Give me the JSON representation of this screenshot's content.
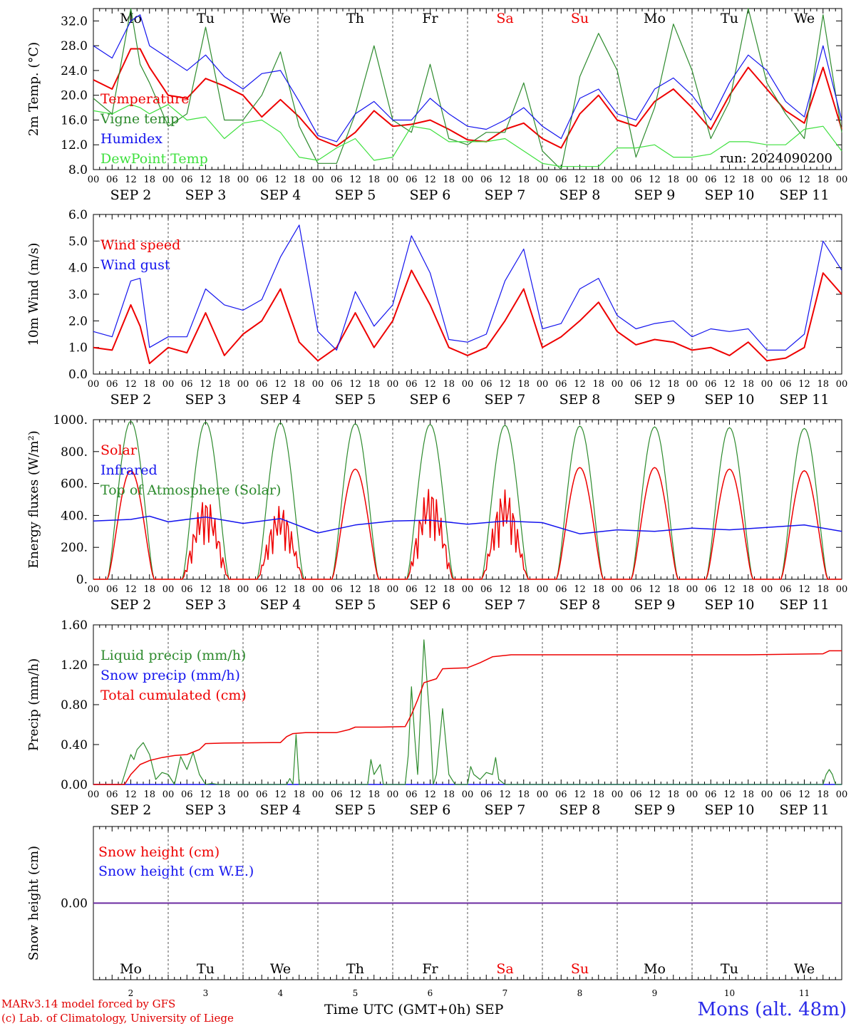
{
  "colors": {
    "red": "#ee0000",
    "green": "#2e8b2e",
    "blue": "#1414ee",
    "lightgreen": "#3ee03e",
    "snow_line": "#6b2ba0",
    "axis": "#000000",
    "grid": "#555555"
  },
  "days": [
    {
      "date": "SEP  2",
      "wd": "Mo",
      "num": "2",
      "weekend": false
    },
    {
      "date": "SEP  3",
      "wd": "Tu",
      "num": "3",
      "weekend": false
    },
    {
      "date": "SEP  4",
      "wd": "We",
      "num": "4",
      "weekend": false
    },
    {
      "date": "SEP  5",
      "wd": "Th",
      "num": "5",
      "weekend": false
    },
    {
      "date": "SEP  6",
      "wd": "Fr",
      "num": "6",
      "weekend": false
    },
    {
      "date": "SEP  7",
      "wd": "Sa",
      "num": "7",
      "weekend": true
    },
    {
      "date": "SEP  8",
      "wd": "Su",
      "num": "8",
      "weekend": true
    },
    {
      "date": "SEP  9",
      "wd": "Mo",
      "num": "9",
      "weekend": false
    },
    {
      "date": "SEP 10",
      "wd": "Tu",
      "num": "10",
      "weekend": false
    },
    {
      "date": "SEP 11",
      "wd": "We",
      "num": "11",
      "weekend": false
    }
  ],
  "hour_ticks": [
    "00",
    "06",
    "12",
    "18"
  ],
  "footer": {
    "model": "MARv3.14 model forced by GFS",
    "lab": "(c) Lab. of Climatology, University of Liege",
    "xaxis": "Time UTC (GMT+0h) SEP",
    "station": "Mons (alt. 48m)"
  },
  "chart_data": [
    {
      "type": "line",
      "ylabel": "2m Temp. (°C)",
      "ylim": [
        8,
        34
      ],
      "yticks": [
        "8.0",
        "12.0",
        "16.0",
        "20.0",
        "24.0",
        "28.0",
        "32.0"
      ],
      "annotation": "run: 2024090200",
      "legend_placement": "left",
      "x_hours": [
        0,
        6,
        12,
        15,
        18,
        24,
        30,
        36,
        42,
        48,
        54,
        60,
        66,
        72,
        78,
        84,
        90,
        96,
        102,
        108,
        114,
        120,
        126,
        132,
        138,
        144,
        150,
        156,
        162,
        168,
        174,
        180,
        186,
        192,
        198,
        204,
        210,
        216,
        222,
        228,
        234,
        240
      ],
      "series": [
        {
          "name": "Temperature",
          "color": "red",
          "values": [
            22.5,
            21,
            27.5,
            27.5,
            24.5,
            20,
            19.5,
            22.7,
            21.5,
            20,
            16.5,
            19.3,
            16.5,
            13,
            11.8,
            14,
            17.5,
            15,
            15.3,
            16,
            14.5,
            12.8,
            12.5,
            14.5,
            15.5,
            13,
            11.5,
            17,
            20,
            16,
            15,
            19,
            21,
            18,
            14.5,
            20,
            24.5,
            21,
            17.5,
            15.5,
            24.5,
            14.5
          ]
        },
        {
          "name": "Vigne temp",
          "color": "green",
          "values": [
            19.5,
            17,
            35,
            25,
            22,
            15,
            17,
            31,
            16,
            16,
            20,
            27,
            15,
            9,
            9,
            17,
            28,
            16,
            14,
            25,
            13,
            12,
            14,
            14,
            22,
            11,
            8,
            23,
            30,
            24,
            10,
            18,
            31.5,
            24,
            13,
            19,
            34,
            22,
            17,
            13,
            33,
            14
          ]
        },
        {
          "name": "Humidex",
          "color": "blue",
          "values": [
            28,
            26,
            32,
            33,
            28,
            26,
            24,
            26.5,
            23,
            21,
            23.5,
            24,
            19,
            13.5,
            12.5,
            17,
            19,
            16,
            16,
            19.5,
            17,
            15,
            14.5,
            16,
            18,
            15,
            13,
            19.5,
            21,
            17,
            16,
            21,
            22.8,
            20,
            16,
            22,
            26.5,
            24,
            19,
            16.5,
            28,
            16
          ]
        },
        {
          "name": "DewPoint Temp",
          "color": "lightgreen",
          "values": [
            17.5,
            17,
            18.5,
            18,
            17,
            18.5,
            16,
            16.5,
            13,
            15.5,
            16,
            14,
            10,
            9.5,
            11.5,
            13,
            9.5,
            10,
            15,
            14.5,
            12.5,
            12.5,
            12.5,
            13,
            11,
            9,
            8.5,
            8.5,
            8.5,
            11.5,
            11.5,
            12,
            10,
            10,
            10.5,
            12.5,
            12.5,
            12,
            12,
            14.5,
            15,
            11
          ]
        }
      ]
    },
    {
      "type": "line",
      "ylabel": "10m Wind (m/s)",
      "ylim": [
        0,
        6
      ],
      "yticks": [
        "0.0",
        "1.0",
        "2.0",
        "3.0",
        "4.0",
        "5.0",
        "6.0"
      ],
      "reference_line": 5.0,
      "legend_placement": "left",
      "x_hours": [
        0,
        6,
        12,
        15,
        18,
        24,
        30,
        36,
        42,
        48,
        54,
        60,
        66,
        72,
        78,
        84,
        90,
        96,
        102,
        108,
        114,
        120,
        126,
        132,
        138,
        144,
        150,
        156,
        162,
        168,
        174,
        180,
        186,
        192,
        198,
        204,
        210,
        216,
        222,
        228,
        234,
        240
      ],
      "series": [
        {
          "name": "Wind speed",
          "color": "red",
          "values": [
            1.0,
            0.9,
            2.6,
            1.8,
            0.4,
            1.0,
            0.8,
            2.3,
            0.7,
            1.5,
            2.0,
            3.2,
            1.2,
            0.5,
            1.0,
            2.3,
            1.0,
            2.0,
            3.9,
            2.6,
            1.0,
            0.7,
            1.0,
            2.0,
            3.2,
            1.0,
            1.4,
            2.0,
            2.7,
            1.6,
            1.1,
            1.3,
            1.2,
            0.9,
            1.0,
            0.7,
            1.2,
            0.5,
            0.6,
            1.0,
            3.8,
            3.0
          ]
        },
        {
          "name": "Wind gust",
          "color": "blue",
          "values": [
            1.6,
            1.4,
            3.5,
            3.6,
            1.0,
            1.4,
            1.4,
            3.2,
            2.6,
            2.4,
            2.8,
            4.4,
            5.6,
            1.6,
            0.9,
            3.1,
            1.8,
            2.6,
            5.2,
            3.8,
            1.3,
            1.2,
            1.5,
            3.5,
            4.7,
            1.7,
            1.9,
            3.2,
            3.6,
            2.2,
            1.7,
            1.9,
            2.0,
            1.4,
            1.7,
            1.6,
            1.7,
            0.9,
            0.9,
            1.5,
            5.0,
            3.9
          ]
        }
      ]
    },
    {
      "type": "line",
      "ylabel": "Energy fluxes (W/m²)",
      "ylim": [
        0,
        1000
      ],
      "yticks": [
        "0.",
        "200.",
        "400.",
        "600.",
        "800.",
        "1000."
      ],
      "legend_placement": "left",
      "series": [
        {
          "name": "Solar",
          "color": "red",
          "peaks": [
            680,
            510,
            460,
            690,
            580,
            560,
            700,
            700,
            690,
            680
          ],
          "cloudy": [
            false,
            true,
            true,
            false,
            true,
            true,
            false,
            false,
            false,
            false
          ]
        },
        {
          "name": "Infrared",
          "color": "blue",
          "x_hours": [
            0,
            12,
            18,
            24,
            36,
            48,
            60,
            72,
            84,
            96,
            108,
            120,
            132,
            144,
            156,
            168,
            180,
            192,
            204,
            216,
            228,
            240
          ],
          "values": [
            365,
            375,
            395,
            360,
            390,
            350,
            380,
            290,
            340,
            365,
            370,
            345,
            365,
            355,
            285,
            310,
            300,
            320,
            310,
            325,
            340,
            300
          ]
        },
        {
          "name": "Top of Atmosphere (Solar)",
          "color": "green",
          "peaks": [
            990,
            985,
            980,
            975,
            970,
            965,
            960,
            955,
            950,
            945
          ]
        }
      ]
    },
    {
      "type": "line",
      "ylabel": "Precip (mm/h)",
      "ylim": [
        0,
        1.6
      ],
      "yticks": [
        "0.00",
        "0.40",
        "0.80",
        "1.20",
        "1.60"
      ],
      "legend_placement": "left",
      "series": [
        {
          "name": "Liquid precip (mm/h)",
          "color": "green",
          "x_hours": [
            0,
            9,
            10,
            12,
            13,
            14,
            16,
            18,
            20,
            22,
            24,
            26,
            28,
            30,
            32,
            34,
            36,
            38,
            40,
            62,
            63,
            64,
            65,
            66,
            88,
            89,
            90,
            92,
            93,
            94,
            100,
            101,
            102,
            103,
            104,
            106,
            108,
            109,
            110,
            112,
            114,
            116,
            120,
            121,
            122,
            124,
            126,
            128,
            129,
            130,
            132,
            234,
            235,
            236,
            237,
            238,
            240
          ],
          "values": [
            0,
            0,
            0.1,
            0.3,
            0.25,
            0.35,
            0.42,
            0.3,
            0.05,
            0.12,
            0.1,
            0,
            0.28,
            0.15,
            0.32,
            0.1,
            0,
            0.01,
            0,
            0,
            0.06,
            0,
            0.5,
            0,
            0,
            0.25,
            0.1,
            0.2,
            0,
            0,
            0,
            0.3,
            0.98,
            0.5,
            0.1,
            1.45,
            0.6,
            0,
            0.1,
            0.76,
            0.1,
            0,
            0,
            0.18,
            0.1,
            0.05,
            0.12,
            0.1,
            0.27,
            0.05,
            0,
            0,
            0.1,
            0.15,
            0.1,
            0,
            0
          ]
        },
        {
          "name": "Snow precip (mm/h)",
          "color": "blue",
          "x_hours": [
            0,
            240
          ],
          "values": [
            0,
            0
          ]
        },
        {
          "name": "Total cumulated (cm)",
          "color": "red",
          "x_hours": [
            0,
            10,
            12,
            15,
            18,
            22,
            26,
            30,
            34,
            36,
            42,
            60,
            62,
            64,
            68,
            78,
            82,
            84,
            92,
            100,
            102,
            104,
            106,
            108,
            110,
            112,
            120,
            124,
            128,
            134,
            210,
            234,
            236,
            240
          ],
          "values": [
            0,
            0,
            0.1,
            0.2,
            0.24,
            0.27,
            0.29,
            0.3,
            0.35,
            0.41,
            0.415,
            0.42,
            0.48,
            0.51,
            0.52,
            0.52,
            0.55,
            0.575,
            0.575,
            0.58,
            0.7,
            0.85,
            1.02,
            1.04,
            1.06,
            1.16,
            1.17,
            1.22,
            1.28,
            1.3,
            1.3,
            1.31,
            1.34,
            1.34
          ]
        }
      ]
    },
    {
      "type": "line",
      "ylabel": "Snow height (cm)",
      "yticks": [
        "0.00"
      ],
      "legend_placement": "left",
      "series": [
        {
          "name": "Snow height (cm)",
          "color": "red",
          "x_hours": [
            0,
            240
          ],
          "values": [
            0,
            0
          ]
        },
        {
          "name": "Snow height (cm W.E.)",
          "color": "blue",
          "x_hours": [
            0,
            240
          ],
          "values": [
            0,
            0
          ]
        }
      ]
    }
  ]
}
